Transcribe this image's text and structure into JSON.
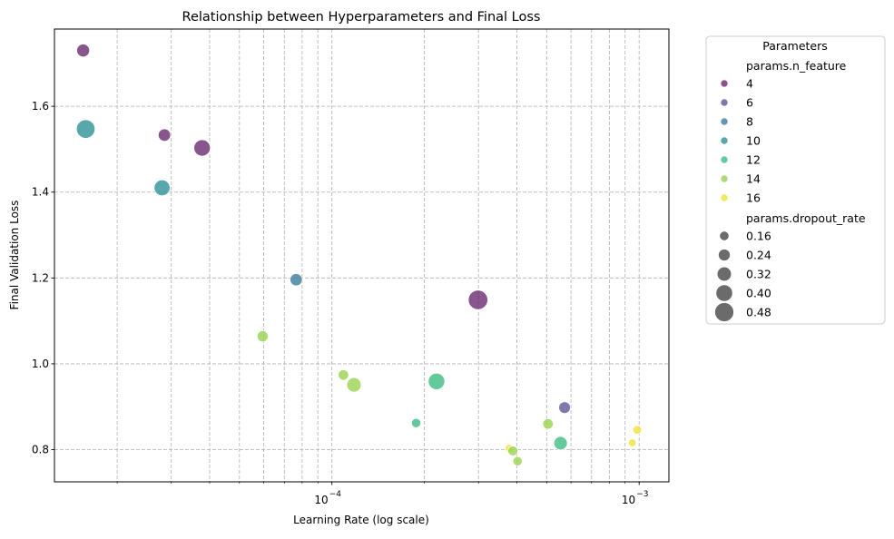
{
  "chart_data": {
    "type": "scatter",
    "title": "Relationship between Hyperparameters and Final Loss",
    "xlabel": "Learning Rate (log scale)",
    "ylabel": "Final Validation Loss",
    "xscale": "log",
    "xlim": [
      1.25e-05,
      0.00125
    ],
    "ylim": [
      0.725,
      1.78
    ],
    "grid": true,
    "x_ticks": [
      {
        "value": 0.0001,
        "base": "10",
        "exp": "−4"
      },
      {
        "value": 0.001,
        "base": "10",
        "exp": "−3"
      }
    ],
    "y_ticks": [
      {
        "value": 0.8,
        "label": "0.8"
      },
      {
        "value": 1.0,
        "label": "1.0"
      },
      {
        "value": 1.2,
        "label": "1.2"
      },
      {
        "value": 1.4,
        "label": "1.4"
      },
      {
        "value": 1.6,
        "label": "1.6"
      }
    ],
    "hue_variable": "params.n_feature",
    "size_variable": "params.dropout_rate",
    "points": [
      {
        "x": 1.55e-05,
        "y": 1.73,
        "n_feature": 4,
        "dropout_rate": 0.28
      },
      {
        "x": 1.58e-05,
        "y": 1.547,
        "n_feature": 10,
        "dropout_rate": 0.47
      },
      {
        "x": 2.85e-05,
        "y": 1.533,
        "n_feature": 4,
        "dropout_rate": 0.26
      },
      {
        "x": 2.8e-05,
        "y": 1.41,
        "n_feature": 10,
        "dropout_rate": 0.38
      },
      {
        "x": 3.78e-05,
        "y": 1.503,
        "n_feature": 4,
        "dropout_rate": 0.4
      },
      {
        "x": 7.65e-05,
        "y": 1.196,
        "n_feature": 8,
        "dropout_rate": 0.26
      },
      {
        "x": 5.95e-05,
        "y": 1.064,
        "n_feature": 14,
        "dropout_rate": 0.22
      },
      {
        "x": 0.000299,
        "y": 1.149,
        "n_feature": 4,
        "dropout_rate": 0.5
      },
      {
        "x": 0.000109,
        "y": 0.974,
        "n_feature": 14,
        "dropout_rate": 0.2
      },
      {
        "x": 0.000118,
        "y": 0.951,
        "n_feature": 14,
        "dropout_rate": 0.33
      },
      {
        "x": 0.000219,
        "y": 0.959,
        "n_feature": 12,
        "dropout_rate": 0.4
      },
      {
        "x": 0.000188,
        "y": 0.862,
        "n_feature": 12,
        "dropout_rate": 0.16
      },
      {
        "x": 0.000572,
        "y": 0.898,
        "n_feature": 6,
        "dropout_rate": 0.24
      },
      {
        "x": 0.000505,
        "y": 0.86,
        "n_feature": 14,
        "dropout_rate": 0.2
      },
      {
        "x": 0.000378,
        "y": 0.803,
        "n_feature": 16,
        "dropout_rate": 0.12
      },
      {
        "x": 0.000388,
        "y": 0.797,
        "n_feature": 14,
        "dropout_rate": 0.18
      },
      {
        "x": 0.000402,
        "y": 0.773,
        "n_feature": 14,
        "dropout_rate": 0.16
      },
      {
        "x": 0.000555,
        "y": 0.815,
        "n_feature": 12,
        "dropout_rate": 0.3
      },
      {
        "x": 0.000985,
        "y": 0.846,
        "n_feature": 16,
        "dropout_rate": 0.14
      },
      {
        "x": 0.00095,
        "y": 0.816,
        "n_feature": 16,
        "dropout_rate": 0.11
      }
    ],
    "legend": {
      "title": "Parameters",
      "placement": "outside-right",
      "hue_title": "params.n_feature",
      "hue_entries": [
        {
          "label": "4",
          "value": 4,
          "color": "#6a2c70"
        },
        {
          "label": "6",
          "value": 6,
          "color": "#5b5a96"
        },
        {
          "label": "8",
          "value": 8,
          "color": "#3f7c9c"
        },
        {
          "label": "10",
          "value": 10,
          "color": "#2e9198"
        },
        {
          "label": "12",
          "value": 12,
          "color": "#3fbb86"
        },
        {
          "label": "14",
          "value": 14,
          "color": "#99d34f"
        },
        {
          "label": "16",
          "value": 16,
          "color": "#f4e13a"
        }
      ],
      "size_title": "params.dropout_rate",
      "size_entries": [
        {
          "label": "0.16",
          "value": 0.16
        },
        {
          "label": "0.24",
          "value": 0.24
        },
        {
          "label": "0.32",
          "value": 0.32
        },
        {
          "label": "0.40",
          "value": 0.4
        },
        {
          "label": "0.48",
          "value": 0.48
        }
      ],
      "size_marker_color": "#6b6b6b"
    }
  }
}
